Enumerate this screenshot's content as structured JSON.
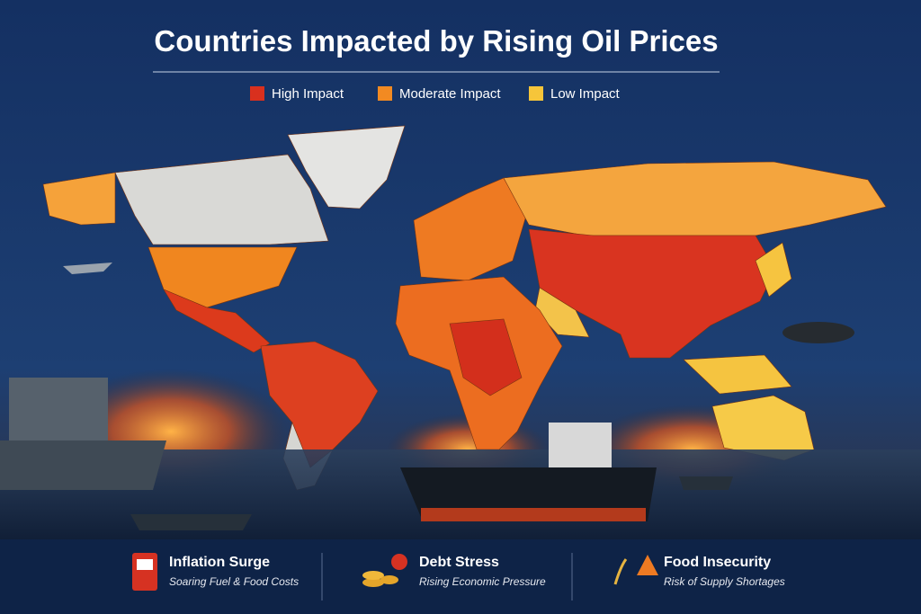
{
  "header": {
    "title": "Countries Impacted by Rising Oil Prices"
  },
  "legend": {
    "items": [
      {
        "label": "High Impact",
        "color": "#d9301e"
      },
      {
        "label": "Moderate Impact",
        "color": "#f28a22"
      },
      {
        "label": "Low Impact",
        "color": "#f6c53a"
      }
    ]
  },
  "footer": {
    "items": [
      {
        "title": "Inflation Surge",
        "subtitle": "Soaring Fuel & Food Costs"
      },
      {
        "title": "Debt Stress",
        "subtitle": "Rising Economic Pressure"
      },
      {
        "title": "Food Insecurity",
        "subtitle": "Risk of Supply Shortages"
      }
    ]
  }
}
